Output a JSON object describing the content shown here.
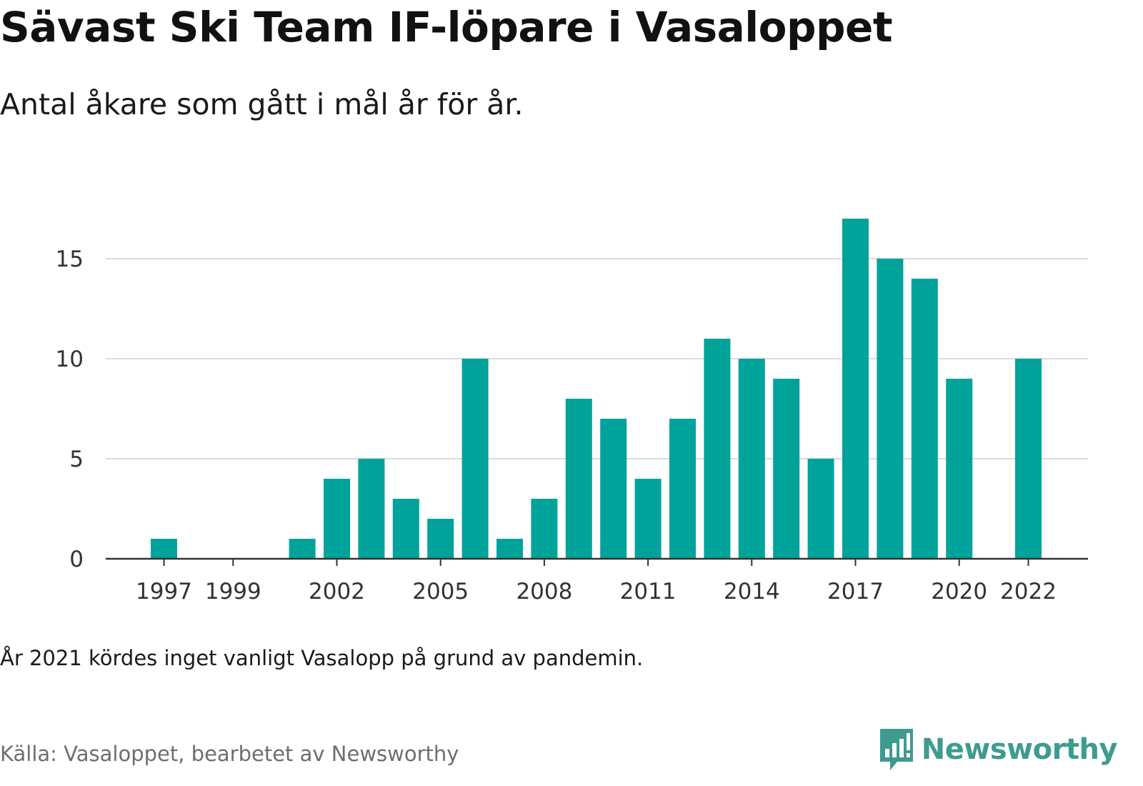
{
  "header": {
    "title": "Sävast Ski Team IF-löpare i Vasaloppet",
    "subtitle": "Antal åkare som gått i mål år för år."
  },
  "footer": {
    "note": "År 2021 kördes inget vanligt Vasalopp på grund av pandemin.",
    "source": "Källa: Vasaloppet, bearbetet av Newsworthy",
    "brand": "Newsworthy",
    "brand_icon": "bar-chart-speech-icon"
  },
  "colors": {
    "bar": "#00a39a",
    "grid": "#dcdcdc",
    "axis": "#333333",
    "tick_text": "#333333",
    "brand": "#3f9b8f"
  },
  "chart_data": {
    "type": "bar",
    "title": "Sävast Ski Team IF-löpare i Vasaloppet",
    "subtitle": "Antal åkare som gått i mål år för år.",
    "xlabel": "",
    "ylabel": "",
    "x": [
      1997,
      1998,
      1999,
      2000,
      2001,
      2002,
      2003,
      2004,
      2005,
      2006,
      2007,
      2008,
      2009,
      2010,
      2011,
      2012,
      2013,
      2014,
      2015,
      2016,
      2017,
      2018,
      2019,
      2020,
      2021,
      2022
    ],
    "values": [
      1,
      0,
      0,
      0,
      1,
      4,
      5,
      3,
      2,
      10,
      1,
      3,
      8,
      7,
      4,
      7,
      11,
      10,
      9,
      5,
      17,
      15,
      14,
      9,
      0,
      10
    ],
    "x_tick_labels": [
      "1997",
      "1999",
      "2002",
      "2005",
      "2008",
      "2011",
      "2014",
      "2017",
      "2020",
      "2022"
    ],
    "y_ticks": [
      0,
      5,
      10,
      15
    ],
    "ylim": [
      0,
      17.5
    ],
    "xlim": [
      1995.8,
      2023.7
    ],
    "grid": "horizontal",
    "legend": "none"
  }
}
